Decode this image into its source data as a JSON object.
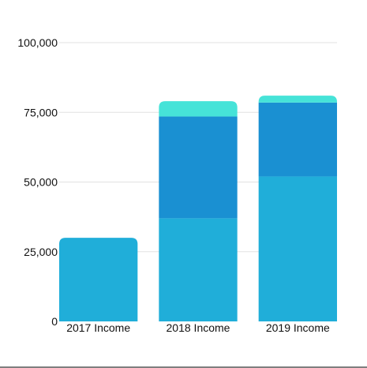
{
  "chart_data": {
    "type": "bar",
    "stacked": true,
    "title": "",
    "xlabel": "",
    "ylabel": "",
    "categories": [
      "2017 Income",
      "2018 Income",
      "2019 Income"
    ],
    "series": [
      {
        "values": [
          30000,
          37000,
          52000
        ],
        "color": "#20aed9"
      },
      {
        "values": [
          0,
          36500,
          26500
        ],
        "color": "#1a90d2"
      },
      {
        "values": [
          0,
          5500,
          2500
        ],
        "color": "#46e3d8"
      }
    ],
    "y_ticks": [
      0,
      25000,
      50000,
      75000,
      100000
    ],
    "y_tick_labels": [
      "0",
      "25,000",
      "50,000",
      "75,000",
      "100,000"
    ],
    "ylim": [
      0,
      100000
    ],
    "grid": true,
    "legend": "none"
  }
}
